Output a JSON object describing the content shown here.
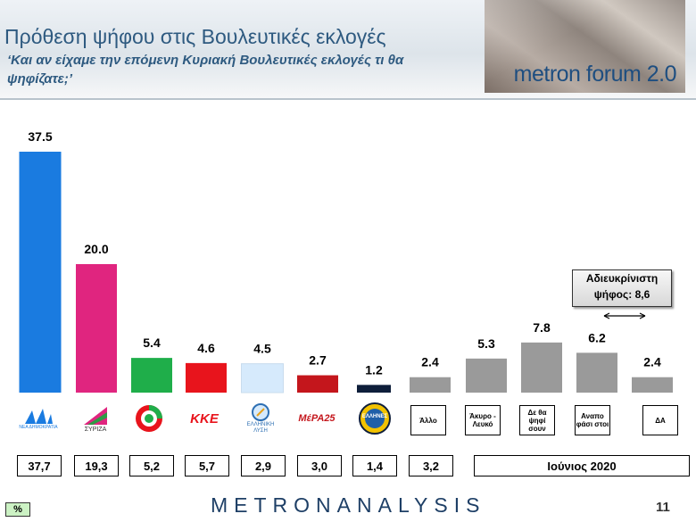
{
  "header": {
    "title": "Πρόθεση ψήφου στις Βουλευτικές εκλογές",
    "subtitle": "‘Και αν είχαμε την επόμενη Κυριακή Βουλευτικές εκλογές τι θα ψηφίζατε;’",
    "banner_text": "metron forum 2.0"
  },
  "chart_data": {
    "type": "bar",
    "categories": [
      "ΝΔ",
      "ΣΥΡΙΖΑ",
      "ΚΙΝΑΛ",
      "ΚΚΕ",
      "Ελληνική Λύση",
      "ΜέΡΑ25",
      "Έλληνες",
      "Άλλο",
      "Άκυρο - Λευκό",
      "Δε θα ψηφίσουν",
      "Αναποφάσιστοι",
      "ΔΑ"
    ],
    "values": [
      37.5,
      20.0,
      5.4,
      4.6,
      4.5,
      2.7,
      1.2,
      2.4,
      5.3,
      7.8,
      6.2,
      2.4
    ],
    "value_labels": [
      "37.5",
      "20.0",
      "5.4",
      "4.6",
      "4.5",
      "2.7",
      "1.2",
      "2.4",
      "5.3",
      "7.8",
      "6.2",
      "2.4"
    ],
    "colors": [
      "#1a7be0",
      "#e0257f",
      "#1fae4a",
      "#e8141c",
      "#d6eafc",
      "#c4161c",
      "#0e1e3a",
      "#9a9a9a",
      "#9a9a9a",
      "#9a9a9a",
      "#9a9a9a",
      "#9a9a9a"
    ],
    "ylim": [
      0,
      40
    ],
    "grid": false,
    "previous_values": [
      "37,7",
      "19,3",
      "5,2",
      "5,7",
      "2,9",
      "3,0",
      "1,4",
      "3,2"
    ],
    "previous_period_label": "Ιούνιος 2020",
    "annotation": "Αδιευκρίνιστη ψήφος: 8,6"
  },
  "labels": {
    "tag_allo": "Άλλο",
    "tag_akyro": "Άκυρο - Λευκό",
    "tag_de_tha": "Δε θα ψηφί σουν",
    "tag_anapof": "Αναπο φάσι στοι",
    "tag_da": "ΔΑ",
    "logo_nd": "ΝΔ",
    "logo_nd_sub": "ΝΕΑ ΔΗΜΟΚΡΑΤΙΑ",
    "logo_syriza": "ΣΥΡΙΖΑ",
    "logo_kke": "ΚΚΕ",
    "logo_el": "ΕΛΛΗΝΙΚΗ ΛΥΣΗ",
    "logo_mera": "ΜέΡΑ25",
    "logo_ellines": "ΕΛΛΗΝΕΣ"
  },
  "footer": {
    "logo": "METRONANALYSIS",
    "page": "11",
    "badge": "%"
  }
}
